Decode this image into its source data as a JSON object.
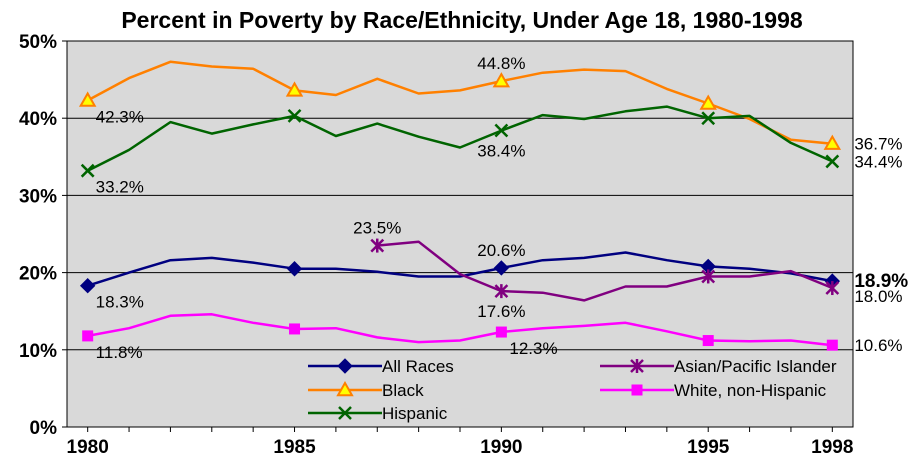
{
  "chart_data": {
    "type": "line",
    "title": "Percent in Poverty by Race/Ethnicity, Under Age 18, 1980-1998",
    "xlabel": "",
    "ylabel": "",
    "ylim": [
      0,
      50
    ],
    "xlim": [
      1979.5,
      1998.5
    ],
    "yticks": [
      "0%",
      "10%",
      "20%",
      "30%",
      "40%",
      "50%"
    ],
    "xticks": [
      {
        "x": 1980,
        "label": "1980"
      },
      {
        "x": 1985,
        "label": "1985"
      },
      {
        "x": 1990,
        "label": "1990"
      },
      {
        "x": 1995,
        "label": "1995"
      },
      {
        "x": 1998,
        "label": "1998"
      }
    ],
    "grid": "horizontal",
    "background_color": "#d9d9d9",
    "legend_position": "bottom-center",
    "series": [
      {
        "name": "All Races",
        "color": "#000080",
        "marker": "diamond",
        "marker_years": [
          1980,
          1985,
          1990,
          1995,
          1998
        ],
        "x": [
          1980,
          1981,
          1982,
          1983,
          1984,
          1985,
          1986,
          1987,
          1988,
          1989,
          1990,
          1991,
          1992,
          1993,
          1994,
          1995,
          1996,
          1997,
          1998
        ],
        "y": [
          18.3,
          20.0,
          21.6,
          21.9,
          21.3,
          20.5,
          20.5,
          20.1,
          19.5,
          19.5,
          20.6,
          21.6,
          21.9,
          22.6,
          21.6,
          20.8,
          20.5,
          19.9,
          18.9
        ]
      },
      {
        "name": "Black",
        "color": "#ff8000",
        "marker": "triangle",
        "marker_years": [
          1980,
          1985,
          1990,
          1995,
          1998
        ],
        "x": [
          1980,
          1981,
          1982,
          1983,
          1984,
          1985,
          1986,
          1987,
          1988,
          1989,
          1990,
          1991,
          1992,
          1993,
          1994,
          1995,
          1996,
          1997,
          1998
        ],
        "y": [
          42.3,
          45.2,
          47.3,
          46.7,
          46.4,
          43.6,
          43.0,
          45.1,
          43.2,
          43.6,
          44.8,
          45.9,
          46.3,
          46.1,
          43.8,
          41.9,
          39.9,
          37.2,
          36.7
        ]
      },
      {
        "name": "Hispanic",
        "color": "#006400",
        "marker": "x",
        "marker_years": [
          1980,
          1985,
          1990,
          1995,
          1998
        ],
        "x": [
          1980,
          1981,
          1982,
          1983,
          1984,
          1985,
          1986,
          1987,
          1988,
          1989,
          1990,
          1991,
          1992,
          1993,
          1994,
          1995,
          1996,
          1997,
          1998
        ],
        "y": [
          33.2,
          35.9,
          39.5,
          38.0,
          39.2,
          40.3,
          37.7,
          39.3,
          37.6,
          36.2,
          38.4,
          40.4,
          39.9,
          40.9,
          41.5,
          40.0,
          40.3,
          36.8,
          34.4
        ]
      },
      {
        "name": "Asian/Pacific Islander",
        "color": "#800080",
        "marker": "asterisk",
        "marker_years": [
          1987,
          1990,
          1995,
          1998
        ],
        "x": [
          1987,
          1988,
          1989,
          1990,
          1991,
          1992,
          1993,
          1994,
          1995,
          1996,
          1997,
          1998
        ],
        "y": [
          23.5,
          24.0,
          19.8,
          17.6,
          17.4,
          16.4,
          18.2,
          18.2,
          19.5,
          19.5,
          20.2,
          18.0
        ]
      },
      {
        "name": "White, non-Hispanic",
        "color": "#ff00ff",
        "marker": "square",
        "marker_years": [
          1980,
          1985,
          1990,
          1995,
          1998
        ],
        "x": [
          1980,
          1981,
          1982,
          1983,
          1984,
          1985,
          1986,
          1987,
          1988,
          1989,
          1990,
          1991,
          1992,
          1993,
          1994,
          1995,
          1996,
          1997,
          1998
        ],
        "y": [
          11.8,
          12.8,
          14.4,
          14.6,
          13.5,
          12.7,
          12.8,
          11.6,
          11.0,
          11.2,
          12.3,
          12.8,
          13.1,
          13.5,
          12.4,
          11.2,
          11.1,
          11.2,
          10.6
        ]
      }
    ],
    "annotations": [
      {
        "text": "42.3%",
        "x": 1980,
        "y": 42.3,
        "anchor": "below-right"
      },
      {
        "text": "44.8%",
        "x": 1990,
        "y": 44.8,
        "anchor": "above"
      },
      {
        "text": "36.7%",
        "x": 1998,
        "y": 36.7,
        "anchor": "right"
      },
      {
        "text": "33.2%",
        "x": 1980,
        "y": 33.2,
        "anchor": "below-right"
      },
      {
        "text": "38.4%",
        "x": 1990,
        "y": 38.4,
        "anchor": "below"
      },
      {
        "text": "34.4%",
        "x": 1998,
        "y": 34.4,
        "anchor": "right"
      },
      {
        "text": "23.5%",
        "x": 1987,
        "y": 23.5,
        "anchor": "above"
      },
      {
        "text": "20.6%",
        "x": 1990,
        "y": 20.6,
        "anchor": "above"
      },
      {
        "text": "18.3%",
        "x": 1980,
        "y": 18.3,
        "anchor": "below-right"
      },
      {
        "text": "17.6%",
        "x": 1990,
        "y": 17.6,
        "anchor": "below"
      },
      {
        "text": "18.9%",
        "x": 1998,
        "y": 18.9,
        "anchor": "right",
        "bold": true
      },
      {
        "text": "18.0%",
        "x": 1998,
        "y": 18.0,
        "anchor": "right-below"
      },
      {
        "text": "11.8%",
        "x": 1980,
        "y": 11.8,
        "anchor": "below-right"
      },
      {
        "text": "12.3%",
        "x": 1990,
        "y": 12.3,
        "anchor": "below-right"
      },
      {
        "text": "10.6%",
        "x": 1998,
        "y": 10.6,
        "anchor": "right"
      }
    ]
  }
}
